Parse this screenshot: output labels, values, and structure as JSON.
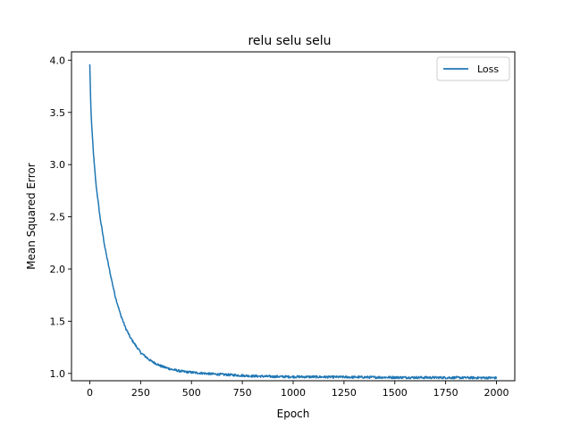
{
  "chart_data": {
    "type": "line",
    "title": "relu selu selu",
    "xlabel": "Epoch",
    "ylabel": "Mean Squared Error",
    "xlim": [
      -90,
      2090
    ],
    "ylim": [
      0.93,
      4.08
    ],
    "xticks": [
      0,
      250,
      500,
      750,
      1000,
      1250,
      1500,
      1750,
      2000
    ],
    "yticks": [
      1.0,
      1.5,
      2.0,
      2.5,
      3.0,
      3.5,
      4.0
    ],
    "ytick_labels": [
      "1.0",
      "1.5",
      "2.0",
      "2.5",
      "3.0",
      "3.5",
      "4.0"
    ],
    "grid": false,
    "legend_position": "top-right",
    "series": [
      {
        "name": "Loss",
        "color": "#1f77b4",
        "x": [
          0,
          5,
          10,
          20,
          30,
          50,
          75,
          100,
          125,
          150,
          175,
          200,
          250,
          300,
          350,
          400,
          450,
          500,
          600,
          700,
          800,
          900,
          1000,
          1250,
          1500,
          1750,
          2000
        ],
        "y": [
          3.96,
          3.55,
          3.35,
          3.05,
          2.82,
          2.5,
          2.2,
          1.96,
          1.74,
          1.57,
          1.44,
          1.34,
          1.2,
          1.12,
          1.07,
          1.04,
          1.02,
          1.01,
          0.995,
          0.985,
          0.975,
          0.97,
          0.968,
          0.965,
          0.962,
          0.96,
          0.958
        ]
      }
    ]
  }
}
